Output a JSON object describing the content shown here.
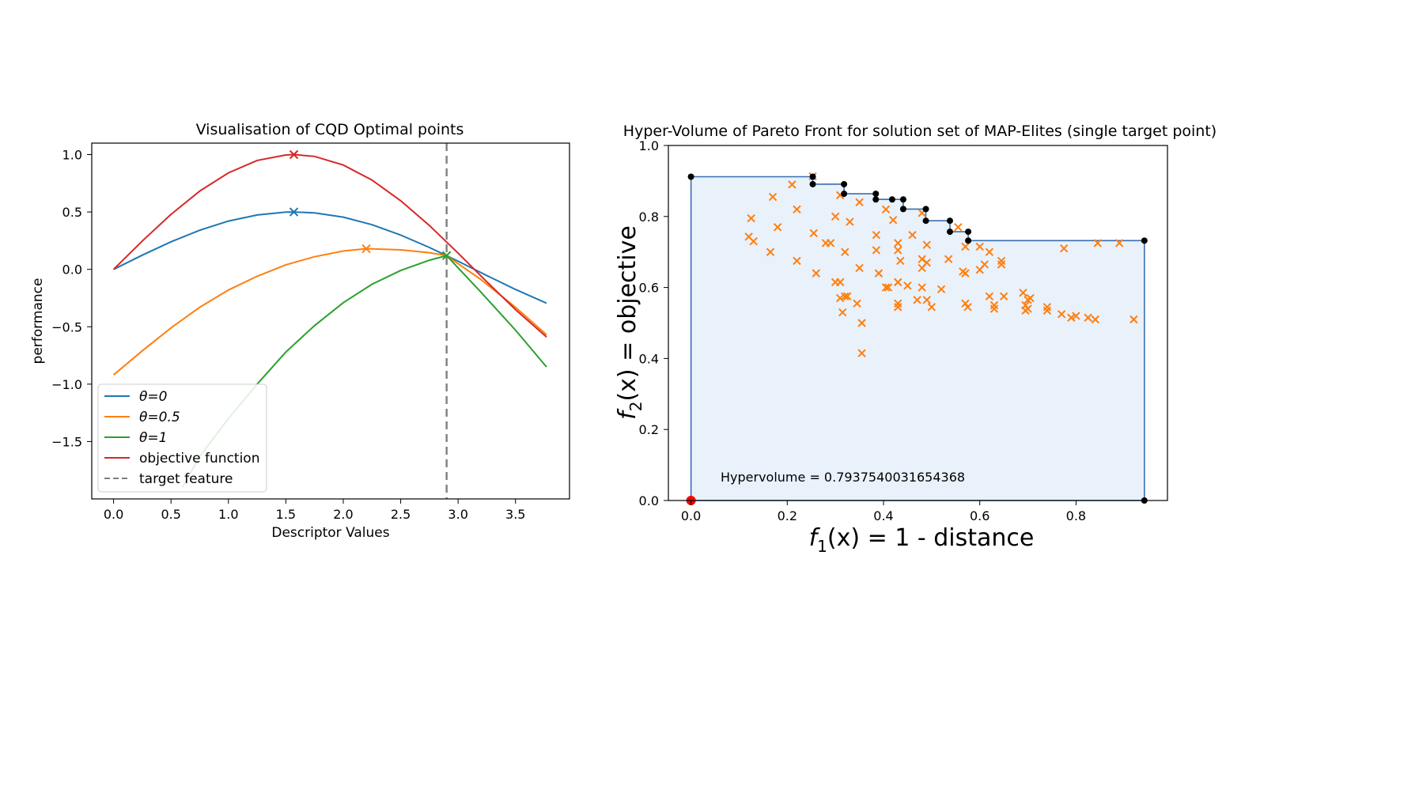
{
  "chart_data": [
    {
      "type": "line",
      "title": "Visualisation of CQD Optimal points",
      "xlabel": "Descriptor Values",
      "ylabel": "performance",
      "xlim": [
        -0.19,
        3.97
      ],
      "ylim": [
        -2.0,
        1.1
      ],
      "xticks": [
        0.0,
        0.5,
        1.0,
        1.5,
        2.0,
        2.5,
        3.0,
        3.5
      ],
      "xtick_labels": [
        "0.0",
        "0.5",
        "1.0",
        "1.5",
        "2.0",
        "2.5",
        "3.0",
        "3.5"
      ],
      "yticks": [
        1.0,
        0.5,
        0.0,
        -0.5,
        -1.0,
        -1.5
      ],
      "ytick_labels": [
        "1.0",
        "0.5",
        "0.0",
        "−0.5",
        "−1.0",
        "−1.5"
      ],
      "target_feature_x": 2.9,
      "series": [
        {
          "name": "θ=0",
          "color": "#1f77b4",
          "x": [
            0.0,
            0.25,
            0.5,
            0.75,
            1.0,
            1.25,
            1.5,
            1.57,
            1.75,
            2.0,
            2.25,
            2.5,
            2.75,
            2.9,
            3.0,
            3.25,
            3.5,
            3.77
          ],
          "values": [
            0.0,
            0.124,
            0.24,
            0.341,
            0.421,
            0.474,
            0.499,
            0.5,
            0.492,
            0.455,
            0.389,
            0.299,
            0.191,
            0.12,
            0.071,
            -0.054,
            -0.175,
            -0.295
          ],
          "optimum": [
            1.57,
            0.5
          ]
        },
        {
          "name": "θ=0.5",
          "color": "#ff7f0e",
          "x": [
            0.0,
            0.25,
            0.5,
            0.75,
            1.0,
            1.25,
            1.5,
            1.75,
            2.0,
            2.2,
            2.5,
            2.75,
            2.9,
            3.2,
            3.5,
            3.77
          ],
          "values": [
            -0.92,
            -0.71,
            -0.51,
            -0.33,
            -0.18,
            -0.06,
            0.04,
            0.11,
            0.16,
            0.18,
            0.17,
            0.145,
            0.12,
            -0.09,
            -0.33,
            -0.57
          ],
          "optimum": [
            2.2,
            0.18
          ]
        },
        {
          "name": "θ=1",
          "color": "#2ca02c",
          "x": [
            0.6,
            0.75,
            1.0,
            1.25,
            1.5,
            1.75,
            2.0,
            2.25,
            2.5,
            2.75,
            2.9,
            3.2,
            3.5,
            3.77
          ],
          "values": [
            -1.9,
            -1.63,
            -1.3,
            -1.0,
            -0.72,
            -0.49,
            -0.29,
            -0.13,
            -0.01,
            0.08,
            0.12,
            -0.2,
            -0.53,
            -0.85
          ],
          "optimum": [
            2.9,
            0.12
          ]
        },
        {
          "name": "objective function",
          "color": "#d62728",
          "x": [
            0.0,
            0.25,
            0.5,
            0.75,
            1.0,
            1.25,
            1.5,
            1.57,
            1.75,
            2.0,
            2.25,
            2.5,
            2.75,
            3.0,
            3.25,
            3.5,
            3.77
          ],
          "values": [
            0.0,
            0.247,
            0.479,
            0.682,
            0.841,
            0.949,
            0.997,
            1.0,
            0.984,
            0.909,
            0.778,
            0.598,
            0.382,
            0.141,
            -0.108,
            -0.351,
            -0.589
          ],
          "optimum": [
            1.57,
            1.0
          ]
        }
      ],
      "legend": {
        "position": "lower-left",
        "entries": [
          "θ=0",
          "θ=0.5",
          "θ=1",
          "objective function",
          "target feature"
        ]
      }
    },
    {
      "type": "scatter",
      "title": "Hyper-Volume of Pareto Front for solution set of MAP-Elites (single target point)",
      "xlabel_parts": [
        "f",
        "1",
        "(x) = 1 - distance"
      ],
      "ylabel_parts": [
        "f",
        "2",
        "(x) = objective"
      ],
      "xlim": [
        -0.047,
        0.99
      ],
      "ylim": [
        0.0,
        1.0
      ],
      "xticks": [
        0.0,
        0.2,
        0.4,
        0.6,
        0.8
      ],
      "xtick_labels": [
        "0.0",
        "0.2",
        "0.4",
        "0.6",
        "0.8"
      ],
      "yticks": [
        0.0,
        0.2,
        0.4,
        0.6,
        0.8,
        1.0
      ],
      "ytick_labels": [
        "0.0",
        "0.2",
        "0.4",
        "0.6",
        "0.8",
        "1.0"
      ],
      "annotation": "Hypervolume = 0.7937540031654368",
      "reference_point": [
        0.0,
        0.0
      ],
      "pareto_front": [
        [
          0.0,
          0.912
        ],
        [
          0.253,
          0.912
        ],
        [
          0.253,
          0.891
        ],
        [
          0.318,
          0.891
        ],
        [
          0.318,
          0.864
        ],
        [
          0.384,
          0.864
        ],
        [
          0.384,
          0.848
        ],
        [
          0.418,
          0.848
        ],
        [
          0.441,
          0.848
        ],
        [
          0.441,
          0.821
        ],
        [
          0.488,
          0.821
        ],
        [
          0.488,
          0.788
        ],
        [
          0.538,
          0.788
        ],
        [
          0.538,
          0.757
        ],
        [
          0.576,
          0.757
        ],
        [
          0.576,
          0.732
        ],
        [
          0.942,
          0.732
        ],
        [
          0.942,
          0.0
        ]
      ],
      "front_points": [
        [
          0.0,
          0.912
        ],
        [
          0.253,
          0.912
        ],
        [
          0.253,
          0.891
        ],
        [
          0.318,
          0.891
        ],
        [
          0.318,
          0.864
        ],
        [
          0.384,
          0.864
        ],
        [
          0.384,
          0.848
        ],
        [
          0.418,
          0.848
        ],
        [
          0.441,
          0.848
        ],
        [
          0.441,
          0.821
        ],
        [
          0.488,
          0.821
        ],
        [
          0.488,
          0.788
        ],
        [
          0.538,
          0.788
        ],
        [
          0.538,
          0.757
        ],
        [
          0.576,
          0.757
        ],
        [
          0.576,
          0.732
        ],
        [
          0.942,
          0.732
        ],
        [
          0.942,
          0.0
        ]
      ],
      "solutions": [
        [
          0.253,
          0.913
        ],
        [
          0.21,
          0.89
        ],
        [
          0.31,
          0.86
        ],
        [
          0.17,
          0.855
        ],
        [
          0.35,
          0.84
        ],
        [
          0.405,
          0.82
        ],
        [
          0.22,
          0.82
        ],
        [
          0.3,
          0.8
        ],
        [
          0.125,
          0.795
        ],
        [
          0.42,
          0.79
        ],
        [
          0.33,
          0.785
        ],
        [
          0.18,
          0.77
        ],
        [
          0.555,
          0.77
        ],
        [
          0.48,
          0.81
        ],
        [
          0.255,
          0.753
        ],
        [
          0.385,
          0.748
        ],
        [
          0.46,
          0.748
        ],
        [
          0.12,
          0.743
        ],
        [
          0.13,
          0.73
        ],
        [
          0.28,
          0.725
        ],
        [
          0.29,
          0.725
        ],
        [
          0.43,
          0.725
        ],
        [
          0.49,
          0.72
        ],
        [
          0.6,
          0.715
        ],
        [
          0.57,
          0.715
        ],
        [
          0.165,
          0.7
        ],
        [
          0.32,
          0.7
        ],
        [
          0.385,
          0.705
        ],
        [
          0.43,
          0.705
        ],
        [
          0.62,
          0.7
        ],
        [
          0.775,
          0.71
        ],
        [
          0.845,
          0.725
        ],
        [
          0.89,
          0.725
        ],
        [
          0.48,
          0.68
        ],
        [
          0.535,
          0.68
        ],
        [
          0.22,
          0.675
        ],
        [
          0.435,
          0.675
        ],
        [
          0.49,
          0.67
        ],
        [
          0.61,
          0.665
        ],
        [
          0.645,
          0.665
        ],
        [
          0.645,
          0.675
        ],
        [
          0.35,
          0.655
        ],
        [
          0.48,
          0.655
        ],
        [
          0.565,
          0.645
        ],
        [
          0.57,
          0.64
        ],
        [
          0.6,
          0.65
        ],
        [
          0.26,
          0.64
        ],
        [
          0.39,
          0.64
        ],
        [
          0.3,
          0.615
        ],
        [
          0.31,
          0.615
        ],
        [
          0.43,
          0.615
        ],
        [
          0.45,
          0.605
        ],
        [
          0.405,
          0.6
        ],
        [
          0.41,
          0.6
        ],
        [
          0.48,
          0.6
        ],
        [
          0.52,
          0.595
        ],
        [
          0.69,
          0.585
        ],
        [
          0.32,
          0.575
        ],
        [
          0.31,
          0.57
        ],
        [
          0.325,
          0.575
        ],
        [
          0.47,
          0.565
        ],
        [
          0.49,
          0.565
        ],
        [
          0.62,
          0.575
        ],
        [
          0.65,
          0.575
        ],
        [
          0.705,
          0.57
        ],
        [
          0.7,
          0.565
        ],
        [
          0.345,
          0.555
        ],
        [
          0.43,
          0.555
        ],
        [
          0.57,
          0.555
        ],
        [
          0.575,
          0.545
        ],
        [
          0.43,
          0.545
        ],
        [
          0.5,
          0.545
        ],
        [
          0.63,
          0.55
        ],
        [
          0.695,
          0.55
        ],
        [
          0.7,
          0.54
        ],
        [
          0.63,
          0.54
        ],
        [
          0.74,
          0.545
        ],
        [
          0.695,
          0.535
        ],
        [
          0.74,
          0.535
        ],
        [
          0.315,
          0.53
        ],
        [
          0.77,
          0.525
        ],
        [
          0.8,
          0.52
        ],
        [
          0.79,
          0.515
        ],
        [
          0.825,
          0.515
        ],
        [
          0.84,
          0.51
        ],
        [
          0.92,
          0.51
        ],
        [
          0.355,
          0.5
        ],
        [
          0.355,
          0.415
        ]
      ]
    }
  ]
}
